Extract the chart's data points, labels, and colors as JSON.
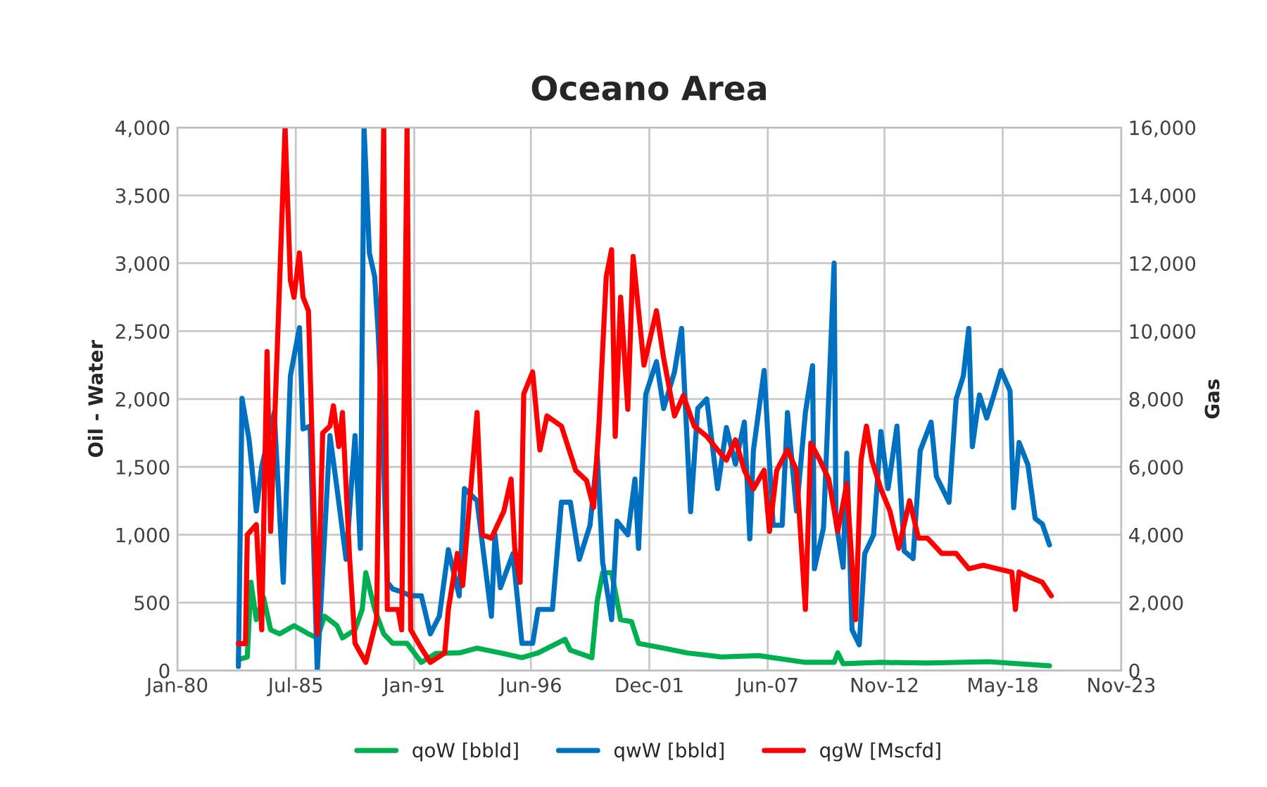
{
  "chart_data": {
    "type": "line",
    "title": "Oceano Area",
    "ylabel": "Oil - Water",
    "y2label": "Gas",
    "xlim": [
      "1980-01-01",
      "2023-11-01"
    ],
    "xticks": [
      {
        "value": "1980-01-01",
        "label": "Jan-80"
      },
      {
        "value": "1985-07-01",
        "label": "Jul-85"
      },
      {
        "value": "1991-01-01",
        "label": "Jan-91"
      },
      {
        "value": "1996-06-01",
        "label": "Jun-96"
      },
      {
        "value": "2001-12-01",
        "label": "Dec-01"
      },
      {
        "value": "2007-06-01",
        "label": "Jun-07"
      },
      {
        "value": "2012-11-01",
        "label": "Nov-12"
      },
      {
        "value": "2018-05-01",
        "label": "May-18"
      },
      {
        "value": "2023-11-01",
        "label": "Nov-23"
      }
    ],
    "ylim": [
      0,
      4000
    ],
    "yticks": [
      0,
      500,
      {
        "value": 1000,
        "label": "1,000"
      },
      {
        "value": 1500,
        "label": "1,500"
      },
      {
        "value": 2000,
        "label": "2,000"
      },
      {
        "value": 2500,
        "label": "2,500"
      },
      {
        "value": 3000,
        "label": "3,000"
      },
      {
        "value": 3500,
        "label": "3,500"
      },
      {
        "value": 4000,
        "label": "4,000"
      }
    ],
    "y2lim": [
      0,
      16000
    ],
    "y2ticks": [
      0,
      {
        "value": 2000,
        "label": "2,000"
      },
      {
        "value": 4000,
        "label": "4,000"
      },
      {
        "value": 6000,
        "label": "6,000"
      },
      {
        "value": 8000,
        "label": "8,000"
      },
      {
        "value": 10000,
        "label": "10,000"
      },
      {
        "value": 12000,
        "label": "12,000"
      },
      {
        "value": 14000,
        "label": "14,000"
      },
      {
        "value": 16000,
        "label": "16,000"
      }
    ],
    "grid": true,
    "legend": "bottom",
    "marker": "none",
    "line_style": "solid",
    "series": [
      {
        "name": "qoW [bbld]",
        "color": "#00b050",
        "x": [
          "1982-11",
          "1983-04",
          "1983-06",
          "1983-09",
          "1984-01",
          "1984-05",
          "1984-10",
          "1985-06",
          "1986-02",
          "1986-07",
          "1986-11",
          "1987-06",
          "1987-09",
          "1988-04",
          "1988-08",
          "1988-10",
          "1989-03",
          "1989-08",
          "1990-01",
          "1990-09",
          "1991-05",
          "1992-01",
          "1993-02",
          "1993-12",
          "1995-01",
          "1996-01",
          "1996-10",
          "1998-01",
          "1998-04",
          "1999-04",
          "1999-07",
          "1999-10",
          "2000-03",
          "2000-08",
          "2001-02",
          "2001-06",
          "2002-08",
          "2003-09",
          "2005-04",
          "2007-01",
          "2009-03",
          "2010-07",
          "2010-09",
          "2010-12",
          "2012-09",
          "2014-11",
          "2017-09",
          "2020-07"
        ],
        "values": [
          80,
          100,
          650,
          375,
          540,
          300,
          270,
          330,
          270,
          240,
          400,
          330,
          240,
          300,
          450,
          720,
          450,
          270,
          200,
          200,
          60,
          125,
          130,
          165,
          130,
          95,
          130,
          230,
          150,
          95,
          510,
          720,
          720,
          375,
          360,
          200,
          165,
          130,
          100,
          110,
          60,
          60,
          130,
          50,
          60,
          55,
          65,
          35
        ]
      },
      {
        "name": "qwW [bbld]",
        "color": "#0070c0",
        "x": [
          "1982-11",
          "1983-01",
          "1983-05",
          "1983-09",
          "1983-12",
          "1984-07",
          "1984-12",
          "1985-04",
          "1985-09",
          "1985-11",
          "1986-03",
          "1986-07",
          "1987-02",
          "1987-06",
          "1987-11",
          "1988-04",
          "1988-07",
          "1988-09",
          "1988-12",
          "1989-03",
          "1989-05",
          "1989-08",
          "1989-10",
          "1990-01",
          "1990-06",
          "1990-11",
          "1991-05",
          "1991-10",
          "1992-03",
          "1992-08",
          "1993-02",
          "1993-05",
          "1993-12",
          "1994-08",
          "1994-10",
          "1995-01",
          "1995-08",
          "1996-01",
          "1996-07",
          "1996-10",
          "1997-06",
          "1997-11",
          "1998-04",
          "1998-09",
          "1999-03",
          "1999-07",
          "1999-10",
          "2000-03",
          "2000-06",
          "2000-12",
          "2001-04",
          "2001-06",
          "2001-10",
          "2002-04",
          "2002-08",
          "2003-02",
          "2003-06",
          "2003-11",
          "2004-03",
          "2004-08",
          "2005-02",
          "2005-07",
          "2005-12",
          "2006-05",
          "2006-08",
          "2006-10",
          "2007-04",
          "2007-09",
          "2008-02",
          "2008-05",
          "2008-10",
          "2009-03",
          "2009-07",
          "2009-08",
          "2010-01",
          "2010-07",
          "2010-08",
          "2010-12",
          "2011-02",
          "2011-05",
          "2011-09",
          "2011-12",
          "2012-05",
          "2012-09",
          "2013-01",
          "2013-06",
          "2013-10",
          "2014-03",
          "2014-07",
          "2015-01",
          "2015-04",
          "2015-11",
          "2016-03",
          "2016-07",
          "2016-10",
          "2016-12",
          "2017-04",
          "2017-08",
          "2017-12",
          "2018-04",
          "2018-09",
          "2018-11",
          "2019-02",
          "2019-07",
          "2019-11",
          "2020-03",
          "2020-07"
        ],
        "values": [
          30,
          2005,
          1700,
          1175,
          1500,
          1900,
          650,
          2170,
          2525,
          1780,
          1800,
          0,
          1730,
          1340,
          820,
          1730,
          900,
          4000,
          3075,
          2900,
          2475,
          1515,
          650,
          600,
          580,
          550,
          550,
          270,
          400,
          890,
          550,
          1340,
          1250,
          400,
          1000,
          610,
          860,
          200,
          200,
          450,
          450,
          1240,
          1240,
          820,
          1070,
          1590,
          800,
          375,
          1100,
          1000,
          1410,
          900,
          2035,
          2275,
          1930,
          2200,
          2520,
          1170,
          1930,
          2000,
          1340,
          1790,
          1520,
          1830,
          970,
          1620,
          2210,
          1070,
          1070,
          1900,
          1175,
          1900,
          2245,
          750,
          1050,
          3000,
          1100,
          760,
          1600,
          300,
          190,
          860,
          1000,
          1760,
          1340,
          1800,
          880,
          825,
          1620,
          1830,
          1430,
          1240,
          2000,
          2170,
          2520,
          1650,
          2030,
          1860,
          2030,
          2210,
          2060,
          1200,
          1680,
          1515,
          1120,
          1080,
          925
        ]
      },
      {
        "name": "qgW [Mscfd]",
        "color": "#ff0000",
        "axis": "y2",
        "x": [
          "1982-11",
          "1983-03",
          "1983-04",
          "1983-09",
          "1983-12",
          "1984-03",
          "1984-05",
          "1984-09",
          "1985-01",
          "1985-04",
          "1985-06",
          "1985-09",
          "1985-11",
          "1986-02",
          "1986-04",
          "1986-07",
          "1986-10",
          "1987-02",
          "1987-04",
          "1987-07",
          "1987-09",
          "1988-01",
          "1988-04",
          "1988-10",
          "1989-04",
          "1989-08",
          "1989-10",
          "1990-04",
          "1990-06",
          "1990-09",
          "1990-11",
          "1991-05",
          "1991-10",
          "1992-06",
          "1992-08",
          "1993-01",
          "1993-04",
          "1993-12",
          "1994-03",
          "1994-08",
          "1995-03",
          "1995-07",
          "1995-09",
          "1995-12",
          "1996-02",
          "1996-07",
          "1996-11",
          "1997-03",
          "1997-11",
          "1998-07",
          "1999-01",
          "1999-05",
          "1999-08",
          "1999-12",
          "2000-03",
          "2000-05",
          "2000-08",
          "2000-12",
          "2001-03",
          "2001-06",
          "2001-09",
          "2002-04",
          "2002-08",
          "2003-02",
          "2003-07",
          "2004-01",
          "2004-08",
          "2005-02",
          "2005-07",
          "2005-12",
          "2006-05",
          "2006-10",
          "2007-04",
          "2007-07",
          "2007-11",
          "2008-05",
          "2008-10",
          "2009-03",
          "2009-06",
          "2009-11",
          "2010-04",
          "2010-09",
          "2011-02",
          "2011-07",
          "2011-10",
          "2012-01",
          "2012-04",
          "2012-09",
          "2013-02",
          "2013-07",
          "2014-01",
          "2014-06",
          "2014-11",
          "2015-07",
          "2016-03",
          "2016-10",
          "2017-06",
          "2018-02",
          "2018-10",
          "2018-12",
          "2019-02",
          "2019-08",
          "2020-03",
          "2020-08"
        ],
        "values": [
          790,
          790,
          4000,
          4300,
          1200,
          9400,
          4100,
          10000,
          16000,
          11500,
          11000,
          12300,
          11000,
          10600,
          7000,
          1080,
          7000,
          7200,
          7800,
          6600,
          7600,
          3300,
          800,
          240,
          1500,
          16000,
          1800,
          1800,
          1200,
          16000,
          1200,
          660,
          240,
          520,
          1800,
          3450,
          2500,
          7600,
          4000,
          3900,
          4700,
          5640,
          3600,
          2600,
          8150,
          8800,
          6500,
          7500,
          7200,
          5900,
          5600,
          4800,
          7300,
          11600,
          12400,
          6900,
          11000,
          7700,
          12200,
          10600,
          9000,
          10600,
          9200,
          7500,
          8100,
          7200,
          6900,
          6500,
          6200,
          6800,
          5900,
          5350,
          5900,
          4100,
          5900,
          6500,
          5900,
          1800,
          6700,
          6200,
          5640,
          4100,
          5500,
          1500,
          6200,
          7200,
          6200,
          5350,
          4700,
          3600,
          5000,
          3900,
          3900,
          3450,
          3450,
          3000,
          3100,
          3000,
          2900,
          1800,
          2900,
          2750,
          2600,
          2200
        ]
      }
    ]
  }
}
